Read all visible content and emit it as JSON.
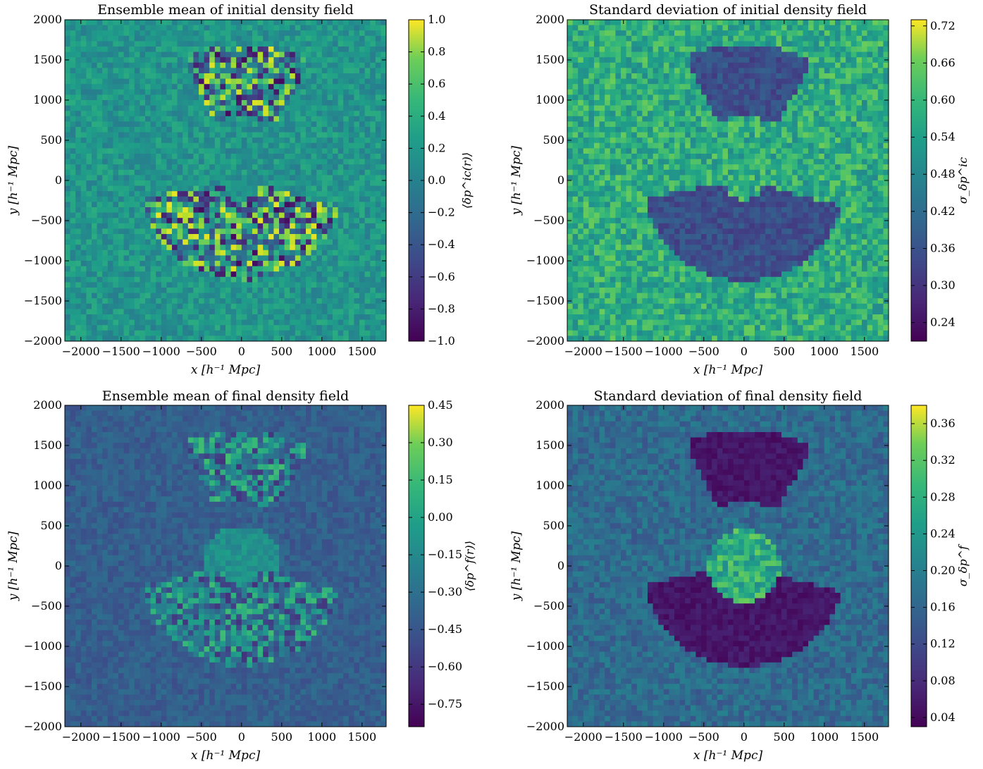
{
  "chart_data": [
    {
      "type": "heatmap",
      "title": "Ensemble mean of initial density field",
      "xlabel": "x [h⁻¹ Mpc]",
      "ylabel": "y [h⁻¹ Mpc]",
      "xlim": [
        -2200,
        1800
      ],
      "ylim": [
        -2000,
        2000
      ],
      "xticks": [
        "−2000",
        "−1500",
        "−1000",
        "−500",
        "0",
        "500",
        "1000",
        "1500"
      ],
      "yticks": [
        "2000",
        "1500",
        "1000",
        "500",
        "0",
        "−500",
        "−1000",
        "−1500",
        "−2000"
      ],
      "colorbar": {
        "label": "⟨δp^ic(r)⟩",
        "range": [
          -1.0,
          1.0
        ],
        "ticks": [
          "1.0",
          "0.8",
          "0.6",
          "0.4",
          "0.2",
          "0.0",
          "−0.2",
          "−0.4",
          "−0.6",
          "−0.8",
          "−1.0"
        ],
        "colormap": "viridis"
      },
      "background_level": 0.52,
      "regions": "high-variance fluctuating survey regions at top (~700–1650) and bottom (~-1200 to -50)"
    },
    {
      "type": "heatmap",
      "title": "Standard deviation of initial density field",
      "xlabel": "x [h⁻¹ Mpc]",
      "ylabel": "y [h⁻¹ Mpc]",
      "xlim": [
        -2200,
        1800
      ],
      "ylim": [
        -2000,
        2000
      ],
      "xticks": [
        "−2000",
        "−1500",
        "−1000",
        "−500",
        "0",
        "500",
        "1000",
        "1500"
      ],
      "yticks": [
        "2000",
        "1500",
        "1000",
        "500",
        "0",
        "−500",
        "−1000",
        "−1500",
        "−2000"
      ],
      "colorbar": {
        "label": "σ_δp^ic",
        "range": [
          0.21,
          0.73
        ],
        "ticks": [
          "0.72",
          "0.66",
          "0.60",
          "0.54",
          "0.48",
          "0.42",
          "0.36",
          "0.30",
          "0.24"
        ],
        "colormap": "viridis"
      },
      "background_level": 0.62,
      "regions": "low-variance survey regions at top and bottom"
    },
    {
      "type": "heatmap",
      "title": "Ensemble mean of final density field",
      "xlabel": "x [h⁻¹ Mpc]",
      "ylabel": "y [h⁻¹ Mpc]",
      "xlim": [
        -2200,
        1800
      ],
      "ylim": [
        -2000,
        2000
      ],
      "xticks": [
        "−2000",
        "−1500",
        "−1000",
        "−500",
        "0",
        "500",
        "1000",
        "1500"
      ],
      "yticks": [
        "2000",
        "1500",
        "1000",
        "500",
        "0",
        "−500",
        "−1000",
        "−1500",
        "−2000"
      ],
      "colorbar": {
        "label": "⟨δp^f(r)⟩",
        "range": [
          -0.84,
          0.45
        ],
        "ticks": [
          "0.45",
          "0.30",
          "0.15",
          "0.00",
          "−0.15",
          "−0.30",
          "−0.45",
          "−0.60",
          "−0.75"
        ],
        "colormap": "viridis"
      },
      "background_level": 0.3,
      "regions": "fluctuating survey regions with brighter centre"
    },
    {
      "type": "heatmap",
      "title": "Standard deviation of final density field",
      "xlabel": "x [h⁻¹ Mpc]",
      "ylabel": "y [h⁻¹ Mpc]",
      "xlim": [
        -2200,
        1800
      ],
      "ylim": [
        -2000,
        2000
      ],
      "xticks": [
        "−2000",
        "−1500",
        "−1000",
        "−500",
        "0",
        "500",
        "1000",
        "1500"
      ],
      "yticks": [
        "2000",
        "1500",
        "1000",
        "500",
        "0",
        "−500",
        "−1000",
        "−1500",
        "−2000"
      ],
      "colorbar": {
        "label": "σ_δp^f",
        "range": [
          0.03,
          0.38
        ],
        "ticks": [
          "0.36",
          "0.32",
          "0.28",
          "0.24",
          "0.20",
          "0.16",
          "0.12",
          "0.08",
          "0.04"
        ],
        "colormap": "viridis"
      },
      "background_level": 0.35,
      "regions": "dark low-variance survey regions with bright centre"
    }
  ]
}
